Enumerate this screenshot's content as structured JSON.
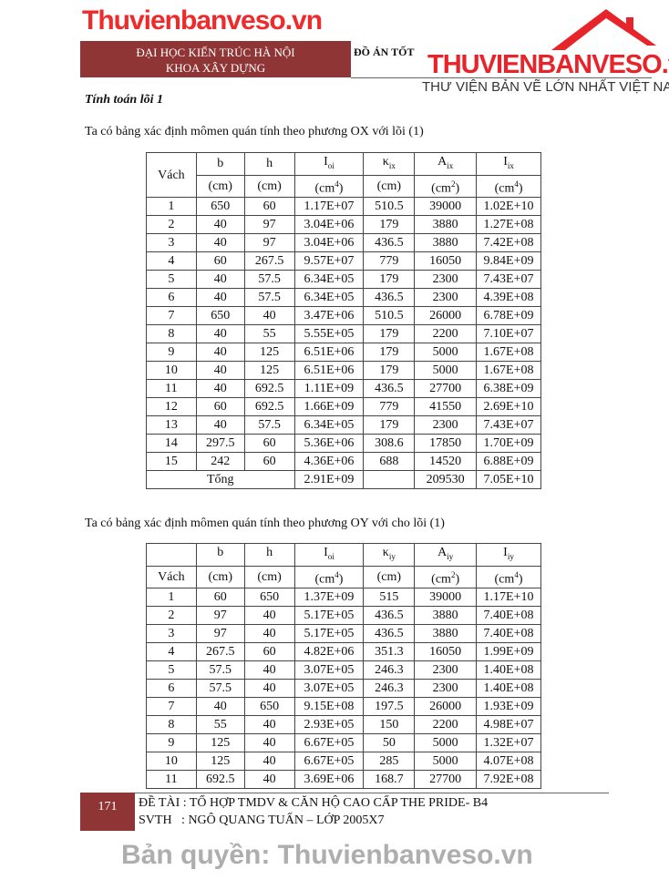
{
  "header": {
    "school": "ĐẠI HỌC KIẾN TRÚC HÀ NỘI",
    "faculty": "KHOA XÂY DỰNG",
    "doc_title": "ĐỒ ÁN TỐT"
  },
  "logo": {
    "brand": "THUVIENBANVESO.vn",
    "tagline": "THƯ VIỆN BẢN VẼ LỚN NHẤT VIỆT NAM",
    "color": "#e8242b"
  },
  "section_title": "Tính toán lõi 1",
  "para1": "Ta có bảng xác định mômen quán tính theo phương OX với lõi (1)",
  "table1": {
    "headers": [
      "Vách",
      "b",
      "h",
      "I",
      "κ",
      "A",
      "I"
    ],
    "header_subs": [
      "",
      "",
      "",
      "oi",
      "ix",
      "ix",
      "ix"
    ],
    "units": [
      "(cm)",
      "(cm)",
      "(cm",
      "(cm)",
      "(cm",
      "(cm"
    ],
    "unit_sups": [
      "",
      "",
      "4",
      "",
      "2",
      "4"
    ],
    "rows": [
      [
        "1",
        "650",
        "60",
        "1.17E+07",
        "510.5",
        "39000",
        "1.02E+10"
      ],
      [
        "2",
        "40",
        "97",
        "3.04E+06",
        "179",
        "3880",
        "1.27E+08"
      ],
      [
        "3",
        "40",
        "97",
        "3.04E+06",
        "436.5",
        "3880",
        "7.42E+08"
      ],
      [
        "4",
        "60",
        "267.5",
        "9.57E+07",
        "779",
        "16050",
        "9.84E+09"
      ],
      [
        "5",
        "40",
        "57.5",
        "6.34E+05",
        "179",
        "2300",
        "7.43E+07"
      ],
      [
        "6",
        "40",
        "57.5",
        "6.34E+05",
        "436.5",
        "2300",
        "4.39E+08"
      ],
      [
        "7",
        "650",
        "40",
        "3.47E+06",
        "510.5",
        "26000",
        "6.78E+09"
      ],
      [
        "8",
        "40",
        "55",
        "5.55E+05",
        "179",
        "2200",
        "7.10E+07"
      ],
      [
        "9",
        "40",
        "125",
        "6.51E+06",
        "179",
        "5000",
        "1.67E+08"
      ],
      [
        "10",
        "40",
        "125",
        "6.51E+06",
        "179",
        "5000",
        "1.67E+08"
      ],
      [
        "11",
        "40",
        "692.5",
        "1.11E+09",
        "436.5",
        "27700",
        "6.38E+09"
      ],
      [
        "12",
        "60",
        "692.5",
        "1.66E+09",
        "779",
        "41550",
        "2.69E+10"
      ],
      [
        "13",
        "40",
        "57.5",
        "6.34E+05",
        "179",
        "2300",
        "7.43E+07"
      ],
      [
        "14",
        "297.5",
        "60",
        "5.36E+06",
        "308.6",
        "17850",
        "1.70E+09"
      ],
      [
        "15",
        "242",
        "60",
        "4.36E+06",
        "688",
        "14520",
        "6.88E+09"
      ]
    ],
    "total": {
      "label": "Tổng",
      "ioi": "2.91E+09",
      "a": "209530",
      "i": "7.05E+10"
    }
  },
  "para2": "Ta có bảng xác định mômen quán tính theo phương OY với cho lõi (1)",
  "table2": {
    "headers": [
      "",
      "b",
      "h",
      "I",
      "κ",
      "A",
      "I"
    ],
    "header_subs": [
      "",
      "",
      "",
      "oi",
      "iy",
      "iy",
      "iy"
    ],
    "vach": "Vách",
    "rows": [
      [
        "1",
        "60",
        "650",
        "1.37E+09",
        "515",
        "39000",
        "1.17E+10"
      ],
      [
        "2",
        "97",
        "40",
        "5.17E+05",
        "436.5",
        "3880",
        "7.40E+08"
      ],
      [
        "3",
        "97",
        "40",
        "5.17E+05",
        "436.5",
        "3880",
        "7.40E+08"
      ],
      [
        "4",
        "267.5",
        "60",
        "4.82E+06",
        "351.3",
        "16050",
        "1.99E+09"
      ],
      [
        "5",
        "57.5",
        "40",
        "3.07E+05",
        "246.3",
        "2300",
        "1.40E+08"
      ],
      [
        "6",
        "57.5",
        "40",
        "3.07E+05",
        "246.3",
        "2300",
        "1.40E+08"
      ],
      [
        "7",
        "40",
        "650",
        "9.15E+08",
        "197.5",
        "26000",
        "1.93E+09"
      ],
      [
        "8",
        "55",
        "40",
        "2.93E+05",
        "150",
        "2200",
        "4.98E+07"
      ],
      [
        "9",
        "125",
        "40",
        "6.67E+05",
        "50",
        "5000",
        "1.32E+07"
      ],
      [
        "10",
        "125",
        "40",
        "6.67E+05",
        "285",
        "5000",
        "4.07E+08"
      ],
      [
        "11",
        "692.5",
        "40",
        "3.69E+06",
        "168.7",
        "27700",
        "7.92E+08"
      ]
    ]
  },
  "watermarks": {
    "center": "Thuvienbanveso.vn",
    "bottom": "Bản quyền: Thuvienbanveso.vn"
  },
  "footer": {
    "page": "171",
    "topic": "ĐỀ TÀI : TỔ HỢP TMDV & CĂN HỘ CAO CẤP THE PRIDE- B4",
    "author": "SVTH   : NGÔ QUANG TUẤN – LỚP 2005X7"
  }
}
